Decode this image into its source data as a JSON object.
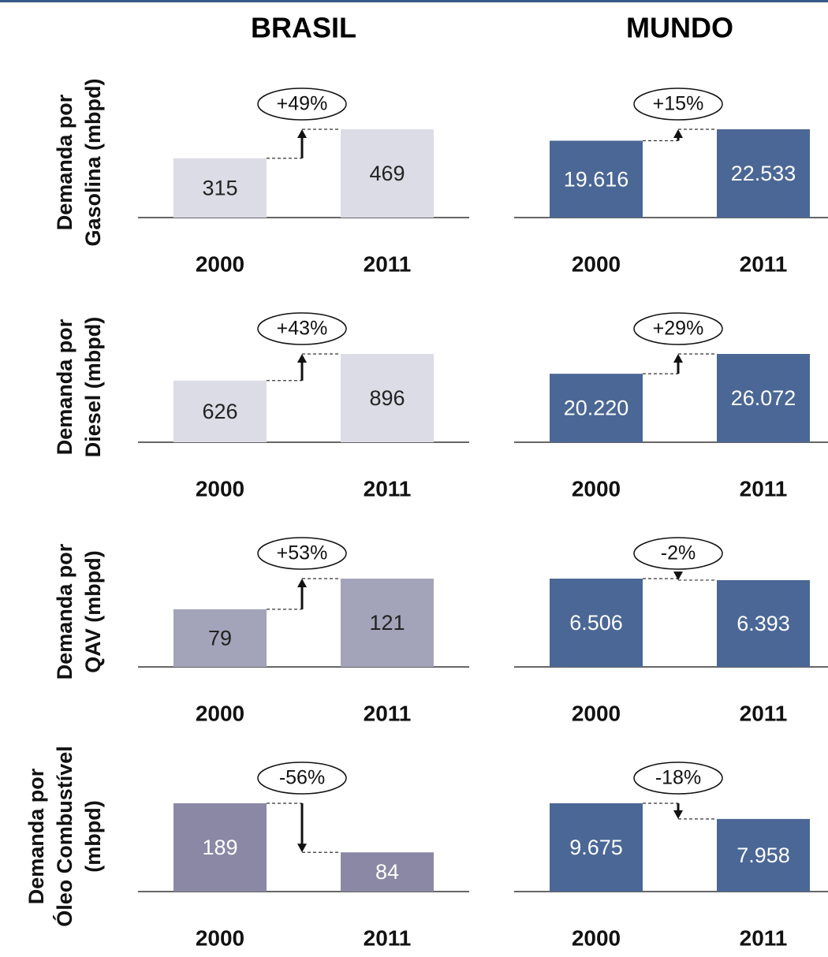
{
  "column_titles": [
    "BRASIL",
    "MUNDO"
  ],
  "chart_data": [
    {
      "type": "bar",
      "ylabel": [
        "Demanda por",
        "Gasolina (mbpd)"
      ],
      "categories": [
        "2000",
        "2011"
      ],
      "values": [
        315,
        469
      ],
      "color": "#dcdce6",
      "change_label": "+49%"
    },
    {
      "type": "bar",
      "categories": [
        "2000",
        "2011"
      ],
      "values": [
        19616,
        22533
      ],
      "value_labels": [
        "19.616",
        "22.533"
      ],
      "color": "#4a6796",
      "change_label": "+15%"
    },
    {
      "type": "bar",
      "ylabel": [
        "Demanda por",
        "Diesel (mbpd)"
      ],
      "categories": [
        "2000",
        "2011"
      ],
      "values": [
        626,
        896
      ],
      "color": "#dcdce6",
      "change_label": "+43%"
    },
    {
      "type": "bar",
      "categories": [
        "2000",
        "2011"
      ],
      "values": [
        20220,
        26072
      ],
      "value_labels": [
        "20.220",
        "26.072"
      ],
      "color": "#4a6796",
      "change_label": "+29%"
    },
    {
      "type": "bar",
      "ylabel": [
        "Demanda por",
        "QAV (mbpd)"
      ],
      "categories": [
        "2000",
        "2011"
      ],
      "values": [
        79,
        121
      ],
      "color": "#a3a3ba",
      "change_label": "+53%"
    },
    {
      "type": "bar",
      "categories": [
        "2000",
        "2011"
      ],
      "values": [
        6506,
        6393
      ],
      "value_labels": [
        "6.506",
        "6.393"
      ],
      "color": "#4a6796",
      "change_label": "-2%"
    },
    {
      "type": "bar",
      "ylabel": [
        "Demanda por",
        "Óleo Combustível",
        "(mbpd)"
      ],
      "categories": [
        "2000",
        "2011"
      ],
      "values": [
        189,
        84
      ],
      "color": "#8a88a5",
      "change_label": "-56%"
    },
    {
      "type": "bar",
      "categories": [
        "2000",
        "2011"
      ],
      "values": [
        9675,
        7958
      ],
      "value_labels": [
        "9.675",
        "7.958"
      ],
      "color": "#4a6796",
      "change_label": "-18%"
    }
  ]
}
